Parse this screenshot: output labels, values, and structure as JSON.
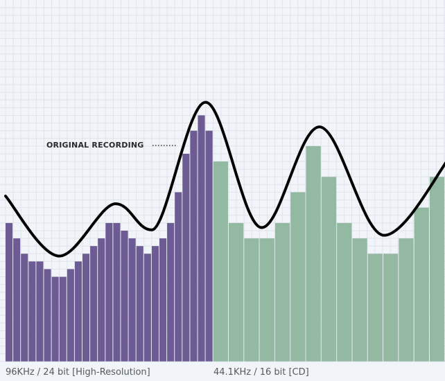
{
  "chart_data": {
    "type": "bar",
    "title": "",
    "annotation": "ORIGINAL RECORDING",
    "series": [
      {
        "name": "96KHz / 24 bit [High-Resolution]",
        "color": "#6d5b94",
        "values": [
          18,
          16,
          14,
          13,
          13,
          12,
          11,
          11,
          12,
          13,
          14,
          15,
          16,
          18,
          18,
          17,
          16,
          15,
          14,
          15,
          16,
          18,
          22,
          27,
          30,
          32,
          30
        ]
      },
      {
        "name": "44.1KHz / 16 bit [CD]",
        "color": "#93b9a2",
        "values": [
          26,
          18,
          16,
          16,
          18,
          22,
          28,
          24,
          18,
          16,
          14,
          14,
          16,
          20,
          24
        ]
      }
    ],
    "original_curve": {
      "color": "#000000",
      "points": [
        [
          0,
          21.5
        ],
        [
          7,
          13.7
        ],
        [
          14.3,
          20.5
        ],
        [
          19,
          17.1
        ],
        [
          26,
          33.7
        ],
        [
          33.3,
          17.4
        ],
        [
          40.8,
          30.5
        ],
        [
          49.2,
          16.4
        ],
        [
          57.7,
          26.5
        ]
      ]
    },
    "ylim": [
      0,
      36
    ],
    "grid": true
  }
}
